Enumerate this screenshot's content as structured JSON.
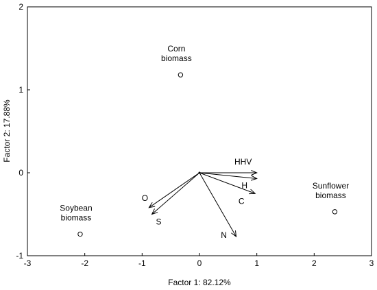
{
  "chart_data": {
    "type": "scatter",
    "title": "",
    "xlabel": "Factor 1: 82.12%",
    "ylabel": "Factor 2: 17.88%",
    "xlim": [
      -3,
      3
    ],
    "ylim": [
      -1,
      2
    ],
    "x_ticks": [
      "-3",
      "-2",
      "-1",
      "0",
      "1",
      "2",
      "3"
    ],
    "y_ticks": [
      "-1",
      "0",
      "1",
      "2"
    ],
    "grid": false,
    "legend": "none",
    "colors": {
      "stroke": "#000000",
      "background": "#ffffff"
    },
    "points": [
      {
        "label": "Corn\nbiomass",
        "x": -0.33,
        "y": 1.18
      },
      {
        "label": "Soybean\nbiomass",
        "x": -2.08,
        "y": -0.74
      },
      {
        "label": "Sunflower\nbiomass",
        "x": 2.36,
        "y": -0.47
      }
    ],
    "vectors": [
      {
        "label": "HHV",
        "x": 1.0,
        "y": 0.0
      },
      {
        "label": "H",
        "x": 1.0,
        "y": -0.07
      },
      {
        "label": "C",
        "x": 0.97,
        "y": -0.25
      },
      {
        "label": "N",
        "x": 0.64,
        "y": -0.77
      },
      {
        "label": "O",
        "x": -0.88,
        "y": -0.42
      },
      {
        "label": "S",
        "x": -0.83,
        "y": -0.5
      }
    ]
  }
}
